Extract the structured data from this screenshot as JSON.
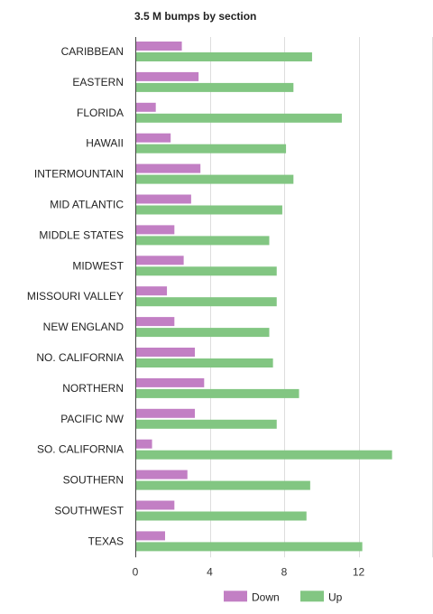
{
  "chart_data": {
    "type": "bar",
    "orientation": "horizontal",
    "title": "3.5 M bumps by section",
    "xlabel": "",
    "ylabel": "",
    "categories": [
      "CARIBBEAN",
      "EASTERN",
      "FLORIDA",
      "HAWAII",
      "INTERMOUNTAIN",
      "MID ATLANTIC",
      "MIDDLE STATES",
      "MIDWEST",
      "MISSOURI VALLEY",
      "NEW ENGLAND",
      "NO. CALIFORNIA",
      "NORTHERN",
      "PACIFIC NW",
      "SO. CALIFORNIA",
      "SOUTHERN",
      "SOUTHWEST",
      "TEXAS"
    ],
    "series": [
      {
        "name": "Down",
        "color": "#c27fc4",
        "values": [
          2.5,
          3.4,
          1.1,
          1.9,
          3.5,
          3.0,
          2.1,
          2.6,
          1.7,
          2.1,
          3.2,
          3.7,
          3.2,
          0.9,
          2.8,
          2.1,
          1.6
        ]
      },
      {
        "name": "Up",
        "color": "#82c682",
        "values": [
          9.5,
          8.5,
          11.1,
          8.1,
          8.5,
          7.9,
          7.2,
          7.6,
          7.6,
          7.2,
          7.4,
          8.8,
          7.6,
          13.8,
          9.4,
          9.2,
          12.2
        ]
      }
    ],
    "xlim": [
      0,
      16
    ],
    "xticks": [
      0,
      4,
      8,
      12
    ],
    "grid": true,
    "legend_position": "bottom"
  }
}
